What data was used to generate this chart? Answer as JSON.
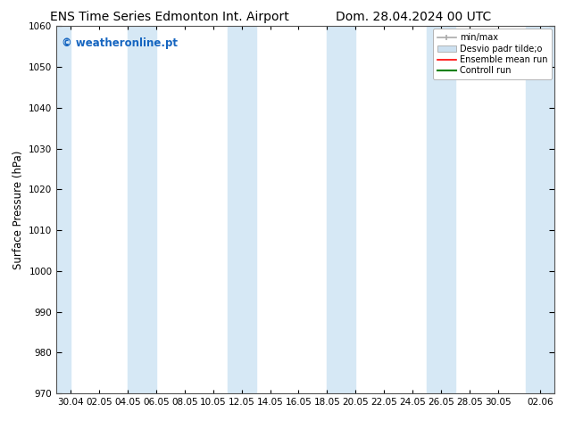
{
  "title_left": "ENS Time Series Edmonton Int. Airport",
  "title_right": "Dom. 28.04.2024 00 UTC",
  "ylabel": "Surface Pressure (hPa)",
  "ylim": [
    970,
    1060
  ],
  "yticks": [
    970,
    980,
    990,
    1000,
    1010,
    1020,
    1030,
    1040,
    1050,
    1060
  ],
  "x_tick_labels": [
    "30.04",
    "02.05",
    "04.05",
    "06.05",
    "08.05",
    "10.05",
    "12.05",
    "14.05",
    "16.05",
    "18.05",
    "20.05",
    "22.05",
    "24.05",
    "26.05",
    "28.05",
    "30.05",
    "02.06"
  ],
  "x_tick_dates": [
    "2024-04-30",
    "2024-05-02",
    "2024-05-04",
    "2024-05-06",
    "2024-05-08",
    "2024-05-10",
    "2024-05-12",
    "2024-05-14",
    "2024-05-16",
    "2024-05-18",
    "2024-05-20",
    "2024-05-22",
    "2024-05-24",
    "2024-05-26",
    "2024-05-28",
    "2024-05-30",
    "2024-06-02"
  ],
  "x_start": "2024-04-29",
  "x_end": "2024-06-03",
  "background_color": "#ffffff",
  "plot_bg_color": "#ffffff",
  "shaded_color": "#d6e8f5",
  "watermark_text": "© weatheronline.pt",
  "watermark_color": "#1565c0",
  "legend_labels": [
    "min/max",
    "Desvio padr tilde;o",
    "Ensemble mean run",
    "Controll run"
  ],
  "title_fontsize": 10,
  "tick_fontsize": 7.5,
  "ylabel_fontsize": 8.5,
  "shaded_band_starts": [
    "2024-04-29",
    "2024-05-04",
    "2024-05-11",
    "2024-05-12",
    "2024-05-18",
    "2024-05-19",
    "2024-05-25",
    "2024-05-26"
  ],
  "shaded_band_ends": [
    "2024-04-30",
    "2024-05-05",
    "2024-05-12",
    "2024-05-13",
    "2024-05-19",
    "2024-05-20",
    "2024-05-26",
    "2024-05-27"
  ]
}
